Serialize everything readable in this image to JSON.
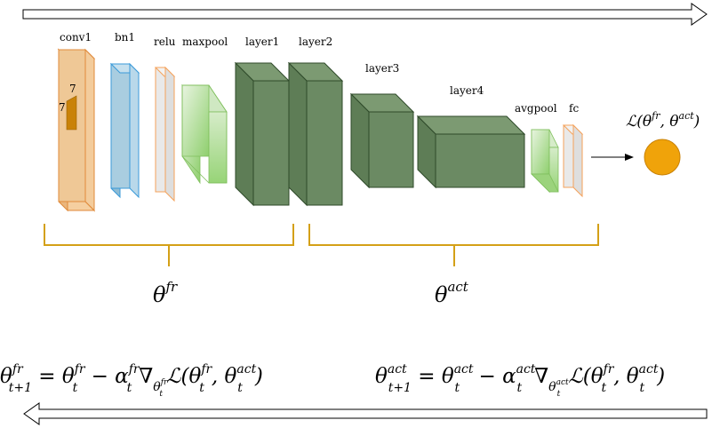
{
  "layers": {
    "conv1": "conv1",
    "bn1": "bn1",
    "relu": "relu",
    "maxpool": "maxpool",
    "layer1": "layer1",
    "layer2": "layer2",
    "layer3": "layer3",
    "layer4": "layer4",
    "avgpool": "avgpool",
    "fc": "fc"
  },
  "kernel": {
    "h": "7",
    "w": "7"
  },
  "loss": {
    "main": "ℒ(θ",
    "sup1": "fr",
    "mid": ", θ",
    "sup2": "act",
    "end": ")"
  },
  "groups": {
    "frozen": {
      "base": "θ",
      "sup": "fr"
    },
    "active": {
      "base": "θ",
      "sup": "act"
    }
  },
  "equations": {
    "frozen": {
      "lhs": "θ",
      "lhs_sup": "fr",
      "lhs_sub": "t+1",
      "eq": " = θ",
      "t1_sup": "fr",
      "t1_sub": "t",
      "minus": " − α",
      "a_sup": "fr",
      "a_sub": "t",
      "nabla": "∇",
      "nabla_sub": "θ",
      "nabla_sub_sup": "fr",
      "nabla_sub_sub": "t",
      "L": "ℒ(θ",
      "L1_sup": "fr",
      "L1_sub": "t",
      "comma": ", θ",
      "L2_sup": "act",
      "L2_sub": "t",
      "close": ")"
    },
    "active": {
      "lhs": "θ",
      "lhs_sup": "act",
      "lhs_sub": "t+1",
      "eq": " = θ",
      "t1_sup": "act",
      "t1_sub": "t",
      "minus": " − α",
      "a_sup": "act",
      "a_sub": "t",
      "nabla": "∇",
      "nabla_sub": "θ",
      "nabla_sub_sup": "act",
      "nabla_sub_sub": "t",
      "L": "ℒ(θ",
      "L1_sup": "fr",
      "L1_sub": "t",
      "comma": ", θ",
      "L2_sup": "act",
      "L2_sub": "t",
      "close": ")"
    }
  },
  "colors": {
    "conv1": "#f5cfa0",
    "bn1": "#a9cde0",
    "relu": "#e9e9e9",
    "maxpool": "#b8dfa8",
    "layer": "#6b8a63",
    "brace": "#d4a017",
    "loss_node": "#f0a30a"
  }
}
